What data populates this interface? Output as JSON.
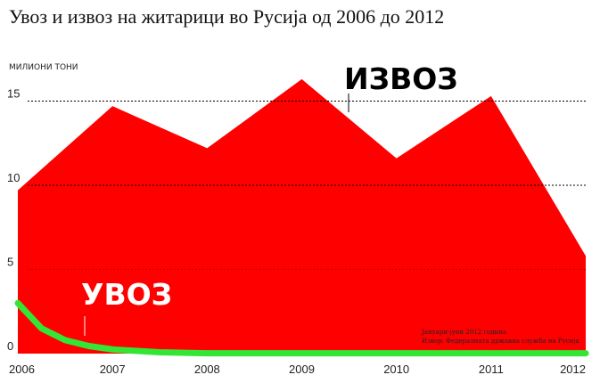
{
  "chart_data": {
    "type": "area",
    "title": "Увоз и извоз на житарици во Русија од 2006 до 2012",
    "ylabel": "МИЛИОНИ ТОНИ",
    "ylim": [
      0,
      16.3
    ],
    "y_ticks": [
      "0",
      "5",
      "10",
      "15"
    ],
    "x_ticks": [
      "2006",
      "2007",
      "2008",
      "2009",
      "2010",
      "2011",
      "2012"
    ],
    "grid": "dotted horizontal at 10 and 15",
    "colors": {
      "export": "#ff0000",
      "import": "#33e633",
      "grid": "#000000"
    },
    "series": [
      {
        "name": "ИЗВОЗ",
        "x": [
          2006,
          2007,
          2008,
          2009,
          2010,
          2011,
          2012
        ],
        "values": [
          9.7,
          14.7,
          12.2,
          16.3,
          11.6,
          15.3,
          5.8
        ]
      },
      {
        "name": "УВОЗ",
        "x": [
          2006,
          2006.25,
          2006.5,
          2006.75,
          2007,
          2007.5,
          2008,
          2012
        ],
        "values": [
          3.0,
          1.5,
          0.8,
          0.45,
          0.25,
          0.08,
          0.02,
          0.02
        ]
      }
    ],
    "source_lines": [
      "Јануари-јуни 2012 година",
      "Извор: Федералната државна служба на Русија"
    ]
  }
}
